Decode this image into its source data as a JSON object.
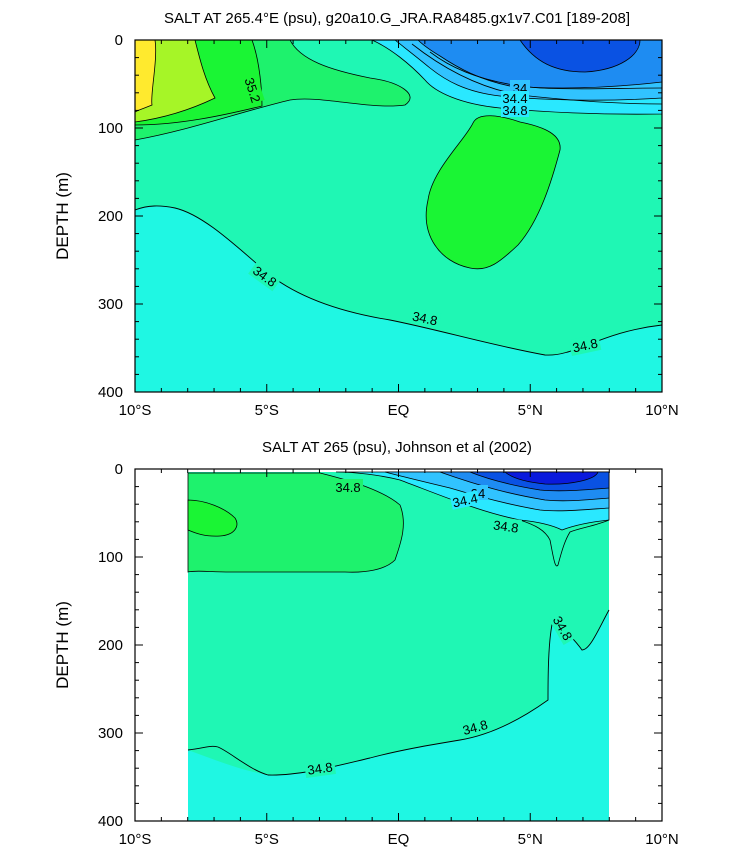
{
  "charts": [
    {
      "title": "SALT AT 265.4°E (psu), g20a10.G_JRA.RA8485.gx1v7.C01 [189-208]",
      "ylabel": "DEPTH (m)",
      "y_ticks": [
        "0",
        "100",
        "200",
        "300",
        "400"
      ],
      "x_ticks": [
        "10°S",
        "5°S",
        "EQ",
        "5°N",
        "10°N"
      ],
      "contour_labels": [
        "35.2",
        "34",
        "34.4",
        "34.8",
        "34.8",
        "34.8",
        "34.8"
      ]
    },
    {
      "title": "SALT AT 265 (psu), Johnson et al (2002)",
      "ylabel": "DEPTH (m)",
      "y_ticks": [
        "0",
        "100",
        "200",
        "300",
        "400"
      ],
      "x_ticks": [
        "10°S",
        "5°S",
        "EQ",
        "5°N",
        "10°N"
      ],
      "contour_labels": [
        "34.8",
        "34",
        "34.4",
        "34.8",
        "34.8",
        "34.8",
        "34.8"
      ]
    }
  ],
  "chart_data": [
    {
      "type": "heatmap",
      "variable": "salinity (psu)",
      "title": "SALT AT 265.4°E (psu), g20a10.G_JRA.RA8485.gx1v7.C01 [189-208]",
      "xlabel": "",
      "ylabel": "DEPTH (m)",
      "xlim": [
        -10,
        10
      ],
      "ylim": [
        400,
        0
      ],
      "contour_levels": [
        34.0,
        34.4,
        34.8,
        35.2
      ],
      "regions": [
        {
          "feature": "salinity maximum (yellow)",
          "x_range": [
            -10,
            -9.3
          ],
          "depth_range": [
            10,
            90
          ]
        },
        {
          "feature": "35.2 contour",
          "x_range": [
            -10,
            -7
          ],
          "depth_range": [
            0,
            125
          ]
        },
        {
          "feature": "fresh surface core (<34)",
          "x_range": [
            4,
            8
          ],
          "depth_range": [
            0,
            35
          ]
        },
        {
          "feature": "saline subsurface lens",
          "x_range": [
            1,
            6
          ],
          "depth_range": [
            90,
            260
          ]
        },
        {
          "feature": "34.8 deep contour",
          "x": [
            -10,
            -6,
            -5,
            -3,
            -1,
            1,
            3,
            5,
            6,
            8,
            10
          ],
          "depth": [
            193,
            230,
            262,
            285,
            300,
            310,
            325,
            345,
            356,
            336,
            327
          ]
        }
      ]
    },
    {
      "type": "heatmap",
      "variable": "salinity (psu)",
      "title": "SALT AT 265 (psu), Johnson et al (2002)",
      "xlabel": "",
      "ylabel": "DEPTH (m)",
      "xlim": [
        -10,
        10
      ],
      "ylim": [
        400,
        0
      ],
      "data_x_range": [
        -8,
        8
      ],
      "contour_levels": [
        34.0,
        34.4,
        34.8
      ],
      "regions": [
        {
          "feature": "saline lens",
          "x_range": [
            -8,
            -6.2
          ],
          "depth_range": [
            30,
            80
          ]
        },
        {
          "feature": "fresh surface core (<34)",
          "x_range": [
            3,
            8
          ],
          "depth_range": [
            0,
            40
          ]
        },
        {
          "feature": "34.8 deep contour",
          "x": [
            -8,
            -7,
            -5,
            -3,
            -1,
            1,
            3,
            5.5,
            6,
            7,
            8
          ],
          "depth": [
            320,
            320,
            350,
            335,
            325,
            310,
            295,
            215,
            155,
            205,
            162
          ]
        }
      ]
    }
  ],
  "colors": {
    "yellow": "#ffea2e",
    "lime": "#a6f527",
    "green_bright": "#1af534",
    "green_mid": "#1ef26d",
    "aqua_green": "#1ff7b4",
    "cyan": "#1ff7e3",
    "cyan_light": "#2ae8ff",
    "sky": "#31c3ff",
    "blue_mid": "#1e8cf2",
    "blue_deep": "#0a52e3",
    "navy": "#0a1adc"
  }
}
